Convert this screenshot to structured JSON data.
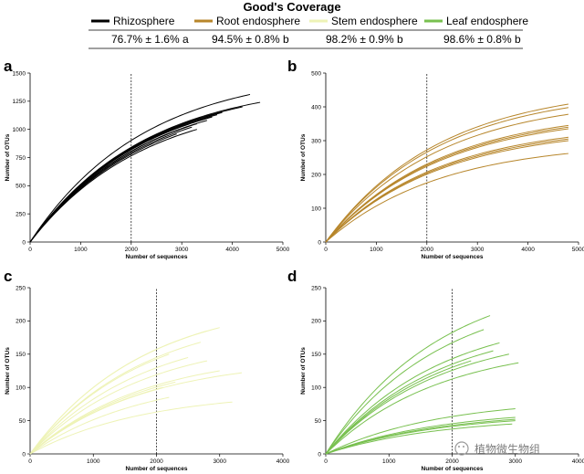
{
  "coverage": {
    "title": "Good's Coverage",
    "groups": [
      {
        "label": "Rhizosphere",
        "color": "#000000",
        "value": "76.7% ± 1.6% a"
      },
      {
        "label": "Root endosphere",
        "color": "#b7862b",
        "value": "94.5% ± 0.8% b"
      },
      {
        "label": "Stem endosphere",
        "color": "#eef3b6",
        "value": "98.2% ± 0.9% b"
      },
      {
        "label": "Leaf endosphere",
        "color": "#78c04f",
        "value": "98.6% ± 0.8% b"
      }
    ]
  },
  "watermark": "植物微生物组",
  "chart_data": [
    {
      "panel": "a",
      "type": "line",
      "color": "#000000",
      "xlabel": "Number of sequences",
      "ylabel": "Number of OTUs",
      "xlim": [
        0,
        5000
      ],
      "ylim": [
        0,
        1500
      ],
      "xticks": [
        0,
        1000,
        2000,
        3000,
        4000,
        5000
      ],
      "yticks": [
        0,
        250,
        500,
        750,
        1000,
        1250,
        1500
      ],
      "vline": 2000,
      "series": [
        {
          "name": "s1",
          "x_end": 4350,
          "y_end": 1310
        },
        {
          "name": "s2",
          "x_end": 4550,
          "y_end": 1240
        },
        {
          "name": "s3",
          "x_end": 4200,
          "y_end": 1200
        },
        {
          "name": "s4",
          "x_end": 3800,
          "y_end": 1150
        },
        {
          "name": "s5",
          "x_end": 3700,
          "y_end": 1130
        },
        {
          "name": "s6",
          "x_end": 3600,
          "y_end": 1110
        },
        {
          "name": "s7",
          "x_end": 3500,
          "y_end": 1080
        },
        {
          "name": "s8",
          "x_end": 3300,
          "y_end": 1050
        },
        {
          "name": "s9",
          "x_end": 3200,
          "y_end": 1020
        },
        {
          "name": "s10",
          "x_end": 2900,
          "y_end": 960
        },
        {
          "name": "s11",
          "x_end": 3300,
          "y_end": 1000
        }
      ]
    },
    {
      "panel": "b",
      "type": "line",
      "color": "#b7862b",
      "xlabel": "Number of sequences",
      "ylabel": "Number of OTUs",
      "xlim": [
        0,
        5000
      ],
      "ylim": [
        0,
        500
      ],
      "xticks": [
        0,
        1000,
        2000,
        3000,
        4000,
        5000
      ],
      "yticks": [
        0,
        100,
        200,
        300,
        400,
        500
      ],
      "vline": 2000,
      "series": [
        {
          "name": "s1",
          "x_end": 4800,
          "y_end": 408
        },
        {
          "name": "s2",
          "x_end": 4800,
          "y_end": 398
        },
        {
          "name": "s3",
          "x_end": 4800,
          "y_end": 378
        },
        {
          "name": "s4",
          "x_end": 4800,
          "y_end": 345
        },
        {
          "name": "s5",
          "x_end": 4800,
          "y_end": 340
        },
        {
          "name": "s6",
          "x_end": 4800,
          "y_end": 335
        },
        {
          "name": "s7",
          "x_end": 4800,
          "y_end": 310
        },
        {
          "name": "s8",
          "x_end": 4800,
          "y_end": 305
        },
        {
          "name": "s9",
          "x_end": 4800,
          "y_end": 300
        },
        {
          "name": "s10",
          "x_end": 4800,
          "y_end": 262
        }
      ]
    },
    {
      "panel": "c",
      "type": "line",
      "color": "#eef3b6",
      "xlabel": "Number of sequences",
      "ylabel": "Number of OTUs",
      "xlim": [
        0,
        4000
      ],
      "ylim": [
        0,
        250
      ],
      "xticks": [
        0,
        1000,
        2000,
        3000,
        4000
      ],
      "yticks": [
        0,
        50,
        100,
        150,
        200,
        250
      ],
      "vline": 2000,
      "series": [
        {
          "name": "s1",
          "x_end": 3000,
          "y_end": 190
        },
        {
          "name": "s2",
          "x_end": 2800,
          "y_end": 185
        },
        {
          "name": "s3",
          "x_end": 2700,
          "y_end": 168
        },
        {
          "name": "s4",
          "x_end": 2200,
          "y_end": 150
        },
        {
          "name": "s5",
          "x_end": 2500,
          "y_end": 145
        },
        {
          "name": "s6",
          "x_end": 2800,
          "y_end": 140
        },
        {
          "name": "s7",
          "x_end": 3000,
          "y_end": 125
        },
        {
          "name": "s8",
          "x_end": 3350,
          "y_end": 122
        },
        {
          "name": "s9",
          "x_end": 2300,
          "y_end": 108
        },
        {
          "name": "s10",
          "x_end": 2100,
          "y_end": 100
        },
        {
          "name": "s11",
          "x_end": 1500,
          "y_end": 82
        },
        {
          "name": "s12",
          "x_end": 2200,
          "y_end": 85
        },
        {
          "name": "s13",
          "x_end": 3200,
          "y_end": 78
        }
      ]
    },
    {
      "panel": "d",
      "type": "line",
      "color": "#78c04f",
      "xlabel": "Number of sequences",
      "ylabel": "Number of OTUs",
      "xlim": [
        0,
        4000
      ],
      "ylim": [
        0,
        250
      ],
      "xticks": [
        0,
        1000,
        2000,
        3000,
        4000
      ],
      "yticks": [
        0,
        50,
        100,
        150,
        200,
        250
      ],
      "vline": 2000,
      "series": [
        {
          "name": "s1",
          "x_end": 2600,
          "y_end": 208
        },
        {
          "name": "s2",
          "x_end": 2500,
          "y_end": 187
        },
        {
          "name": "s3",
          "x_end": 2750,
          "y_end": 167
        },
        {
          "name": "s4",
          "x_end": 2650,
          "y_end": 155
        },
        {
          "name": "s5",
          "x_end": 2300,
          "y_end": 140
        },
        {
          "name": "s6",
          "x_end": 3050,
          "y_end": 137
        },
        {
          "name": "s7",
          "x_end": 2900,
          "y_end": 150
        },
        {
          "name": "s8",
          "x_end": 3000,
          "y_end": 68
        },
        {
          "name": "s9",
          "x_end": 3000,
          "y_end": 55
        },
        {
          "name": "s10",
          "x_end": 3000,
          "y_end": 52
        },
        {
          "name": "s11",
          "x_end": 3000,
          "y_end": 50
        },
        {
          "name": "s12",
          "x_end": 2950,
          "y_end": 45
        }
      ]
    }
  ]
}
